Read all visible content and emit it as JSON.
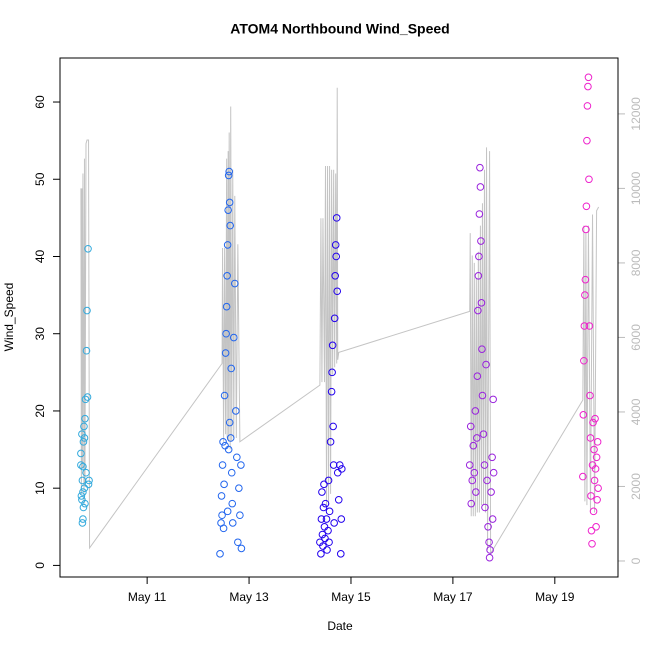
{
  "chart_data": {
    "type": "scatter",
    "title": "ATOM4 Northbound Wind_Speed",
    "x_label": "Date",
    "y_label": "Wind_Speed",
    "xlim": [
      9.29,
      20.24
    ],
    "xticks": [
      {
        "value": 11,
        "label": "May 11"
      },
      {
        "value": 13,
        "label": "May 13"
      },
      {
        "value": 15,
        "label": "May 15"
      },
      {
        "value": 17,
        "label": "May 17"
      },
      {
        "value": 19,
        "label": "May 19"
      }
    ],
    "ylim": [
      -1.5,
      65.7
    ],
    "yticks": [
      0,
      10,
      20,
      30,
      40,
      50,
      60
    ],
    "y2lim": [
      -430,
      13500
    ],
    "y2ticks": [
      0,
      2000,
      4000,
      6000,
      8000,
      10000,
      12000
    ],
    "series": [
      {
        "type": "line",
        "axis": "y2",
        "color": "#c4c4c4",
        "x": [
          9.7,
          9.71,
          9.72,
          9.73,
          9.74,
          9.76,
          9.77,
          9.78,
          9.8,
          9.82,
          9.85,
          9.87,
          12.47,
          12.48,
          12.5,
          12.52,
          12.54,
          12.56,
          12.57,
          12.59,
          12.6,
          12.61,
          12.63,
          12.64,
          12.66,
          12.68,
          12.7,
          12.72,
          12.75,
          12.78,
          12.82,
          14.39,
          14.41,
          14.43,
          14.45,
          14.48,
          14.5,
          14.52,
          14.54,
          14.56,
          14.58,
          14.6,
          14.62,
          14.64,
          14.66,
          14.68,
          14.7,
          14.72,
          14.73,
          14.74,
          14.76,
          17.33,
          17.34,
          17.36,
          17.38,
          17.4,
          17.42,
          17.44,
          17.46,
          17.48,
          17.5,
          17.52,
          17.54,
          17.56,
          17.58,
          17.6,
          17.62,
          17.64,
          17.66,
          17.68,
          17.72,
          17.74,
          19.55,
          19.57,
          19.59,
          19.61,
          19.63,
          19.66,
          19.7,
          19.74,
          19.78,
          19.82,
          19.86
        ],
        "values": [
          10000,
          1800,
          10000,
          2500,
          10400,
          1500,
          10800,
          2000,
          11200,
          11300,
          11300,
          350,
          5300,
          8400,
          3200,
          8400,
          3400,
          10800,
          3300,
          11000,
          3200,
          11500,
          3000,
          12200,
          3200,
          10500,
          3300,
          9800,
          3300,
          8500,
          3200,
          4720,
          9200,
          4800,
          9200,
          4800,
          10600,
          1500,
          10600,
          1500,
          10600,
          1800,
          10500,
          5000,
          10500,
          5200,
          10400,
          5300,
          12700,
          5400,
          5600,
          6700,
          8800,
          1200,
          8200,
          1200,
          8000,
          1200,
          7600,
          1300,
          8300,
          1300,
          9000,
          1500,
          9600,
          1500,
          10500,
          1300,
          11100,
          300,
          11000,
          200,
          4320,
          9000,
          1600,
          8800,
          1500,
          9000,
          1300,
          9300,
          1300,
          9400,
          9500
        ]
      },
      {
        "color": "#33aadd",
        "x": [
          9.7,
          9.7,
          9.71,
          9.72,
          9.72,
          9.73,
          9.73,
          9.74,
          9.74,
          9.75,
          9.75,
          9.76,
          9.77,
          9.77,
          9.78,
          9.79,
          9.8,
          9.81,
          9.82,
          9.83,
          9.84,
          9.85,
          9.86,
          9.78,
          9.74
        ],
        "values": [
          13,
          14.5,
          9,
          8.5,
          17,
          11,
          5.5,
          6,
          12.8,
          16,
          7.5,
          18,
          10,
          16.5,
          19,
          21.5,
          12,
          27.8,
          33,
          21.8,
          41,
          10.5,
          11,
          8,
          9.5
        ]
      },
      {
        "color": "#2266ee",
        "x": [
          12.43,
          12.45,
          12.46,
          12.47,
          12.48,
          12.49,
          12.5,
          12.51,
          12.52,
          12.53,
          12.54,
          12.55,
          12.56,
          12.57,
          12.58,
          12.59,
          12.6,
          12.61,
          12.62,
          12.63,
          12.64,
          12.65,
          12.66,
          12.67,
          12.68,
          12.7,
          12.72,
          12.74,
          12.76,
          12.78,
          12.8,
          12.82,
          12.84,
          12.85,
          12.6,
          12.62,
          12.58
        ],
        "values": [
          1.5,
          5.5,
          9,
          6.5,
          13,
          16,
          4.8,
          10.5,
          22,
          15.5,
          27.5,
          30,
          33.5,
          37.5,
          41.5,
          46,
          50.5,
          51,
          47,
          44,
          16.5,
          25.5,
          12,
          8,
          5.5,
          29.5,
          36.5,
          20,
          14,
          3,
          10,
          6.5,
          13,
          2.2,
          15,
          18.5,
          7
        ]
      },
      {
        "color": "#2200ee",
        "x": [
          14.39,
          14.41,
          14.42,
          14.43,
          14.44,
          14.45,
          14.46,
          14.47,
          14.48,
          14.49,
          14.5,
          14.52,
          14.53,
          14.55,
          14.56,
          14.58,
          14.6,
          14.62,
          14.63,
          14.64,
          14.65,
          14.66,
          14.67,
          14.68,
          14.69,
          14.7,
          14.71,
          14.72,
          14.73,
          14.74,
          14.76,
          14.78,
          14.8,
          14.81,
          14.82,
          14.57
        ],
        "values": [
          3,
          1.5,
          6,
          9.5,
          4,
          2.5,
          7.5,
          10.5,
          5,
          3.5,
          8,
          6,
          2,
          4.5,
          11,
          7,
          16,
          22.5,
          25,
          28.5,
          18,
          13,
          5.5,
          32,
          37.5,
          41.5,
          40,
          45,
          35.5,
          12,
          8.5,
          13,
          1.5,
          6,
          12.5,
          3
        ]
      },
      {
        "color": "#9922dd",
        "x": [
          17.33,
          17.35,
          17.36,
          17.38,
          17.4,
          17.42,
          17.44,
          17.45,
          17.47,
          17.48,
          17.49,
          17.5,
          17.51,
          17.52,
          17.53,
          17.54,
          17.55,
          17.56,
          17.57,
          17.58,
          17.6,
          17.62,
          17.63,
          17.65,
          17.67,
          17.69,
          17.71,
          17.72,
          17.73,
          17.75,
          17.77,
          17.78,
          17.79,
          17.8
        ],
        "values": [
          13,
          18,
          8,
          11,
          15.5,
          12,
          20,
          9.5,
          16.5,
          24.5,
          33,
          37.5,
          40,
          45.5,
          51.5,
          49,
          42,
          34,
          28,
          22,
          17,
          13,
          7.5,
          26,
          11,
          5,
          3,
          1,
          2,
          9.5,
          14,
          6,
          21.5,
          12
        ]
      },
      {
        "color": "#ee22cc",
        "x": [
          19.55,
          19.56,
          19.57,
          19.58,
          19.59,
          19.6,
          19.61,
          19.62,
          19.63,
          19.64,
          19.65,
          19.66,
          19.67,
          19.68,
          19.69,
          19.7,
          19.71,
          19.72,
          19.73,
          19.74,
          19.75,
          19.76,
          19.77,
          19.78,
          19.79,
          19.8,
          19.81,
          19.82,
          19.83,
          19.84,
          19.85
        ],
        "values": [
          11.5,
          19.5,
          26.5,
          31,
          35,
          37,
          43.5,
          46.5,
          55,
          59.5,
          62,
          63.2,
          50,
          31,
          22,
          16.5,
          9,
          4.5,
          2.8,
          13,
          18.5,
          7,
          15,
          11,
          19,
          12.5,
          5,
          14,
          8.5,
          16,
          10
        ]
      }
    ]
  }
}
